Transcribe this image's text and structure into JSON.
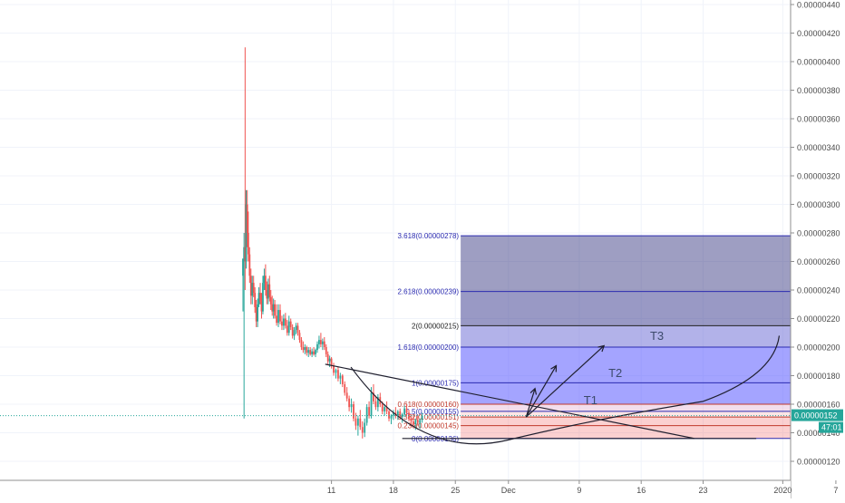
{
  "chart_data": {
    "type": "candlestick",
    "title": "",
    "xlabel": "",
    "ylabel": "",
    "grid": true,
    "price_axis": {
      "ylim": [
        1.08e-06,
        4.48e-06
      ],
      "ticks": [
        "0.00000440",
        "0.00000420",
        "0.00000400",
        "0.00000380",
        "0.00000360",
        "0.00000340",
        "0.00000320",
        "0.00000300",
        "0.00000280",
        "0.00000260",
        "0.00000240",
        "0.00000220",
        "0.00000200",
        "0.00000180",
        "0.00000160",
        "0.00000140",
        "0.00000120"
      ],
      "tick_values": [
        4.4e-06,
        4.2e-06,
        4e-06,
        3.8e-06,
        3.6e-06,
        3.4e-06,
        3.2e-06,
        3e-06,
        2.8e-06,
        2.6e-06,
        2.4e-06,
        2.2e-06,
        2e-06,
        1.8e-06,
        1.6e-06,
        1.4e-06,
        1.2e-06
      ]
    },
    "time_axis": {
      "ticks": [
        "11",
        "18",
        "25",
        "Dec",
        "9",
        "16",
        "23",
        "2020",
        "7"
      ],
      "tick_days": [
        10,
        17,
        24,
        30,
        38,
        45,
        52,
        61,
        67
      ]
    },
    "last_price": {
      "value": 1.52e-06,
      "label": "0.00000152",
      "countdown": "47:01"
    },
    "fibonacci_extension": {
      "x_range_days": [
        24.6,
        66.3
      ],
      "levels": [
        {
          "ratio": "0",
          "price": 1.36e-06,
          "label": "0(0.00000136)",
          "color": "#2b2bb0"
        },
        {
          "ratio": "0.236",
          "price": 1.45e-06,
          "label": "0.236(0.00000145)",
          "color": "#c0392b"
        },
        {
          "ratio": "0.382",
          "price": 1.51e-06,
          "label": "0.382(0.00000151)",
          "color": "#c0392b"
        },
        {
          "ratio": "0.5",
          "price": 1.55e-06,
          "label": "0.5(0.00000155)",
          "color": "#2b2bb0"
        },
        {
          "ratio": "0.618",
          "price": 1.6e-06,
          "label": "0.618(0.00000160)",
          "color": "#c0392b"
        },
        {
          "ratio": "1",
          "price": 1.75e-06,
          "label": "1(0.00000175)",
          "color": "#2b2bb0"
        },
        {
          "ratio": "1.618",
          "price": 2e-06,
          "label": "1.618(0.00000200)",
          "color": "#2b2bb0"
        },
        {
          "ratio": "2",
          "price": 2.15e-06,
          "label": "2(0.00000215)",
          "color": "#222222"
        },
        {
          "ratio": "2.618",
          "price": 2.39e-06,
          "label": "2.618(0.00000239)",
          "color": "#2b2bb0"
        },
        {
          "ratio": "3.618",
          "price": 2.78e-06,
          "label": "3.618(0.00000278)",
          "color": "#2b2bb0"
        }
      ]
    },
    "annotations": [
      {
        "text": "T1",
        "x_day": 38.5,
        "price": 1.6e-06
      },
      {
        "text": "T2",
        "x_day": 41.3,
        "price": 1.79e-06
      },
      {
        "text": "T3",
        "x_day": 46.0,
        "price": 2.05e-06
      }
    ],
    "candles": [
      {
        "d": 0.0,
        "o": 2.5e-06,
        "h": 2.62e-06,
        "l": 2.25e-06,
        "c": 2.62e-06
      },
      {
        "d": 0.12,
        "o": 2.62e-06,
        "h": 2.8e-06,
        "l": 1.5e-06,
        "c": 2.7e-06
      },
      {
        "d": 0.24,
        "o": 2.7e-06,
        "h": 4.1e-06,
        "l": 2.4e-06,
        "c": 2.6e-06
      },
      {
        "d": 0.36,
        "o": 2.6e-06,
        "h": 3.1e-06,
        "l": 2.55e-06,
        "c": 3e-06
      },
      {
        "d": 0.48,
        "o": 3e-06,
        "h": 3.1e-06,
        "l": 2.7e-06,
        "c": 2.8e-06
      },
      {
        "d": 0.6,
        "o": 2.8e-06,
        "h": 2.95e-06,
        "l": 2.6e-06,
        "c": 2.65e-06
      },
      {
        "d": 0.75,
        "o": 2.65e-06,
        "h": 2.7e-06,
        "l": 2.45e-06,
        "c": 2.5e-06
      },
      {
        "d": 0.9,
        "o": 2.5e-06,
        "h": 2.55e-06,
        "l": 2.3e-06,
        "c": 2.36e-06
      },
      {
        "d": 1.05,
        "o": 2.36e-06,
        "h": 2.5e-06,
        "l": 2.3e-06,
        "c": 2.45e-06
      },
      {
        "d": 1.2,
        "o": 2.45e-06,
        "h": 2.5e-06,
        "l": 2.35e-06,
        "c": 2.38e-06
      },
      {
        "d": 1.35,
        "o": 2.38e-06,
        "h": 2.42e-06,
        "l": 2.24e-06,
        "c": 2.28e-06
      },
      {
        "d": 1.5,
        "o": 2.28e-06,
        "h": 2.33e-06,
        "l": 2.14e-06,
        "c": 2.18e-06
      },
      {
        "d": 1.65,
        "o": 2.18e-06,
        "h": 2.34e-06,
        "l": 2.14e-06,
        "c": 2.3e-06
      },
      {
        "d": 1.8,
        "o": 2.3e-06,
        "h": 2.42e-06,
        "l": 2.28e-06,
        "c": 2.38e-06
      },
      {
        "d": 1.95,
        "o": 2.38e-06,
        "h": 2.45e-06,
        "l": 2.3e-06,
        "c": 2.32e-06
      },
      {
        "d": 2.1,
        "o": 2.32e-06,
        "h": 2.38e-06,
        "l": 2.2e-06,
        "c": 2.25e-06
      },
      {
        "d": 2.25,
        "o": 2.25e-06,
        "h": 2.5e-06,
        "l": 2.23e-06,
        "c": 2.45e-06
      },
      {
        "d": 2.4,
        "o": 2.45e-06,
        "h": 2.55e-06,
        "l": 2.4e-06,
        "c": 2.5e-06
      },
      {
        "d": 2.55,
        "o": 2.5e-06,
        "h": 2.58e-06,
        "l": 2.36e-06,
        "c": 2.4e-06
      },
      {
        "d": 2.7,
        "o": 2.4e-06,
        "h": 2.46e-06,
        "l": 2.3e-06,
        "c": 2.34e-06
      },
      {
        "d": 2.85,
        "o": 2.34e-06,
        "h": 2.48e-06,
        "l": 2.3e-06,
        "c": 2.44e-06
      },
      {
        "d": 3.0,
        "o": 2.44e-06,
        "h": 2.5e-06,
        "l": 2.32e-06,
        "c": 2.35e-06
      },
      {
        "d": 3.15,
        "o": 2.35e-06,
        "h": 2.4e-06,
        "l": 2.26e-06,
        "c": 2.3e-06
      },
      {
        "d": 3.3,
        "o": 2.3e-06,
        "h": 2.36e-06,
        "l": 2.22e-06,
        "c": 2.25e-06
      },
      {
        "d": 3.45,
        "o": 2.25e-06,
        "h": 2.34e-06,
        "l": 2.2e-06,
        "c": 2.3e-06
      },
      {
        "d": 3.6,
        "o": 2.3e-06,
        "h": 2.33e-06,
        "l": 2.2e-06,
        "c": 2.22e-06
      },
      {
        "d": 3.8,
        "o": 2.22e-06,
        "h": 2.3e-06,
        "l": 2.15e-06,
        "c": 2.17e-06
      },
      {
        "d": 4.0,
        "o": 2.17e-06,
        "h": 2.3e-06,
        "l": 2.14e-06,
        "c": 2.26e-06
      },
      {
        "d": 4.2,
        "o": 2.26e-06,
        "h": 2.3e-06,
        "l": 2.16e-06,
        "c": 2.18e-06
      },
      {
        "d": 4.4,
        "o": 2.18e-06,
        "h": 2.22e-06,
        "l": 2.12e-06,
        "c": 2.15e-06
      },
      {
        "d": 4.6,
        "o": 2.15e-06,
        "h": 2.23e-06,
        "l": 2.12e-06,
        "c": 2.2e-06
      },
      {
        "d": 4.8,
        "o": 2.2e-06,
        "h": 2.24e-06,
        "l": 2.13e-06,
        "c": 2.15e-06
      },
      {
        "d": 5.0,
        "o": 2.15e-06,
        "h": 2.19e-06,
        "l": 2.08e-06,
        "c": 2.1e-06
      },
      {
        "d": 5.2,
        "o": 2.1e-06,
        "h": 2.22e-06,
        "l": 2.08e-06,
        "c": 2.18e-06
      },
      {
        "d": 5.4,
        "o": 2.18e-06,
        "h": 2.2e-06,
        "l": 2.12e-06,
        "c": 2.14e-06
      },
      {
        "d": 5.6,
        "o": 2.14e-06,
        "h": 2.16e-06,
        "l": 2.06e-06,
        "c": 2.08e-06
      },
      {
        "d": 5.8,
        "o": 2.08e-06,
        "h": 2.14e-06,
        "l": 2.05e-06,
        "c": 2.12e-06
      },
      {
        "d": 6.0,
        "o": 2.12e-06,
        "h": 2.17e-06,
        "l": 2.09e-06,
        "c": 2.15e-06
      },
      {
        "d": 6.2,
        "o": 2.15e-06,
        "h": 2.17e-06,
        "l": 2.08e-06,
        "c": 2.1e-06
      },
      {
        "d": 6.4,
        "o": 2.1e-06,
        "h": 2.12e-06,
        "l": 2.03e-06,
        "c": 2.05e-06
      },
      {
        "d": 6.6,
        "o": 2.05e-06,
        "h": 2.07e-06,
        "l": 1.98e-06,
        "c": 2e-06
      },
      {
        "d": 6.8,
        "o": 2e-06,
        "h": 2.04e-06,
        "l": 1.96e-06,
        "c": 1.98e-06
      },
      {
        "d": 7.0,
        "o": 1.98e-06,
        "h": 2.02e-06,
        "l": 1.95e-06,
        "c": 2e-06
      },
      {
        "d": 7.2,
        "o": 2e-06,
        "h": 2.01e-06,
        "l": 1.94e-06,
        "c": 1.96e-06
      },
      {
        "d": 7.4,
        "o": 1.96e-06,
        "h": 2e-06,
        "l": 1.93e-06,
        "c": 1.98e-06
      },
      {
        "d": 7.6,
        "o": 1.98e-06,
        "h": 2e-06,
        "l": 1.94e-06,
        "c": 1.95e-06
      },
      {
        "d": 7.8,
        "o": 1.95e-06,
        "h": 1.99e-06,
        "l": 1.93e-06,
        "c": 1.97e-06
      },
      {
        "d": 8.0,
        "o": 1.97e-06,
        "h": 2e-06,
        "l": 1.94e-06,
        "c": 1.95e-06
      },
      {
        "d": 8.2,
        "o": 1.95e-06,
        "h": 1.99e-06,
        "l": 1.93e-06,
        "c": 1.98e-06
      },
      {
        "d": 8.4,
        "o": 1.98e-06,
        "h": 2.04e-06,
        "l": 1.96e-06,
        "c": 2.02e-06
      },
      {
        "d": 8.6,
        "o": 2.02e-06,
        "h": 2.08e-06,
        "l": 1.99e-06,
        "c": 2.05e-06
      },
      {
        "d": 8.8,
        "o": 2.05e-06,
        "h": 2.1e-06,
        "l": 2e-06,
        "c": 2.02e-06
      },
      {
        "d": 9.0,
        "o": 2.02e-06,
        "h": 2.06e-06,
        "l": 1.98e-06,
        "c": 2.04e-06
      },
      {
        "d": 9.2,
        "o": 2.04e-06,
        "h": 2.07e-06,
        "l": 1.98e-06,
        "c": 2e-06
      },
      {
        "d": 9.4,
        "o": 2e-06,
        "h": 2.02e-06,
        "l": 1.93e-06,
        "c": 1.95e-06
      },
      {
        "d": 9.6,
        "o": 1.95e-06,
        "h": 1.97e-06,
        "l": 1.88e-06,
        "c": 1.9e-06
      },
      {
        "d": 9.8,
        "o": 1.9e-06,
        "h": 1.94e-06,
        "l": 1.86e-06,
        "c": 1.92e-06
      },
      {
        "d": 10.0,
        "o": 1.92e-06,
        "h": 1.93e-06,
        "l": 1.85e-06,
        "c": 1.87e-06
      },
      {
        "d": 10.25,
        "o": 1.87e-06,
        "h": 1.89e-06,
        "l": 1.8e-06,
        "c": 1.82e-06
      },
      {
        "d": 10.5,
        "o": 1.82e-06,
        "h": 1.85e-06,
        "l": 1.78e-06,
        "c": 1.84e-06
      },
      {
        "d": 10.75,
        "o": 1.84e-06,
        "h": 1.86e-06,
        "l": 1.76e-06,
        "c": 1.78e-06
      },
      {
        "d": 11.0,
        "o": 1.78e-06,
        "h": 1.82e-06,
        "l": 1.74e-06,
        "c": 1.8e-06
      },
      {
        "d": 11.25,
        "o": 1.8e-06,
        "h": 1.81e-06,
        "l": 1.72e-06,
        "c": 1.74e-06
      },
      {
        "d": 11.5,
        "o": 1.74e-06,
        "h": 1.76e-06,
        "l": 1.66e-06,
        "c": 1.68e-06
      },
      {
        "d": 11.75,
        "o": 1.68e-06,
        "h": 1.72e-06,
        "l": 1.62e-06,
        "c": 1.64e-06
      },
      {
        "d": 12.0,
        "o": 1.64e-06,
        "h": 1.66e-06,
        "l": 1.55e-06,
        "c": 1.58e-06
      },
      {
        "d": 12.25,
        "o": 1.58e-06,
        "h": 1.64e-06,
        "l": 1.54e-06,
        "c": 1.6e-06
      },
      {
        "d": 12.5,
        "o": 1.6e-06,
        "h": 1.62e-06,
        "l": 1.48e-06,
        "c": 1.5e-06
      },
      {
        "d": 12.75,
        "o": 1.5e-06,
        "h": 1.54e-06,
        "l": 1.42e-06,
        "c": 1.45e-06
      },
      {
        "d": 13.0,
        "o": 1.45e-06,
        "h": 1.52e-06,
        "l": 1.38e-06,
        "c": 1.5e-06
      },
      {
        "d": 13.25,
        "o": 1.5e-06,
        "h": 1.56e-06,
        "l": 1.42e-06,
        "c": 1.44e-06
      },
      {
        "d": 13.5,
        "o": 1.44e-06,
        "h": 1.48e-06,
        "l": 1.36e-06,
        "c": 1.4e-06
      },
      {
        "d": 13.75,
        "o": 1.4e-06,
        "h": 1.5e-06,
        "l": 1.37e-06,
        "c": 1.47e-06
      },
      {
        "d": 14.0,
        "o": 1.47e-06,
        "h": 1.6e-06,
        "l": 1.45e-06,
        "c": 1.58e-06
      },
      {
        "d": 14.25,
        "o": 1.58e-06,
        "h": 1.62e-06,
        "l": 1.5e-06,
        "c": 1.52e-06
      },
      {
        "d": 14.5,
        "o": 1.52e-06,
        "h": 1.72e-06,
        "l": 1.5e-06,
        "c": 1.68e-06
      },
      {
        "d": 14.75,
        "o": 1.68e-06,
        "h": 1.74e-06,
        "l": 1.6e-06,
        "c": 1.62e-06
      },
      {
        "d": 15.0,
        "o": 1.62e-06,
        "h": 1.66e-06,
        "l": 1.56e-06,
        "c": 1.58e-06
      },
      {
        "d": 15.25,
        "o": 1.58e-06,
        "h": 1.67e-06,
        "l": 1.55e-06,
        "c": 1.65e-06
      },
      {
        "d": 15.5,
        "o": 1.65e-06,
        "h": 1.68e-06,
        "l": 1.58e-06,
        "c": 1.6e-06
      },
      {
        "d": 15.75,
        "o": 1.6e-06,
        "h": 1.62e-06,
        "l": 1.53e-06,
        "c": 1.55e-06
      },
      {
        "d": 16.0,
        "o": 1.55e-06,
        "h": 1.6e-06,
        "l": 1.52e-06,
        "c": 1.58e-06
      },
      {
        "d": 16.25,
        "o": 1.58e-06,
        "h": 1.62e-06,
        "l": 1.53e-06,
        "c": 1.55e-06
      },
      {
        "d": 16.5,
        "o": 1.55e-06,
        "h": 1.56e-06,
        "l": 1.48e-06,
        "c": 1.5e-06
      },
      {
        "d": 16.75,
        "o": 1.5e-06,
        "h": 1.53e-06,
        "l": 1.46e-06,
        "c": 1.52e-06
      },
      {
        "d": 17.0,
        "o": 1.52e-06,
        "h": 1.56e-06,
        "l": 1.49e-06,
        "c": 1.54e-06
      },
      {
        "d": 17.25,
        "o": 1.54e-06,
        "h": 1.58e-06,
        "l": 1.5e-06,
        "c": 1.52e-06
      },
      {
        "d": 17.5,
        "o": 1.52e-06,
        "h": 1.56e-06,
        "l": 1.49e-06,
        "c": 1.55e-06
      },
      {
        "d": 17.75,
        "o": 1.55e-06,
        "h": 1.57e-06,
        "l": 1.5e-06,
        "c": 1.51e-06
      },
      {
        "d": 18.0,
        "o": 1.51e-06,
        "h": 1.54e-06,
        "l": 1.47e-06,
        "c": 1.53e-06
      },
      {
        "d": 18.25,
        "o": 1.53e-06,
        "h": 1.59e-06,
        "l": 1.51e-06,
        "c": 1.57e-06
      },
      {
        "d": 18.5,
        "o": 1.57e-06,
        "h": 1.6e-06,
        "l": 1.52e-06,
        "c": 1.54e-06
      },
      {
        "d": 18.75,
        "o": 1.54e-06,
        "h": 1.56e-06,
        "l": 1.48e-06,
        "c": 1.5e-06
      },
      {
        "d": 19.0,
        "o": 1.5e-06,
        "h": 1.53e-06,
        "l": 1.45e-06,
        "c": 1.48e-06
      },
      {
        "d": 19.25,
        "o": 1.48e-06,
        "h": 1.52e-06,
        "l": 1.44e-06,
        "c": 1.46e-06
      },
      {
        "d": 19.5,
        "o": 1.46e-06,
        "h": 1.5e-06,
        "l": 1.42e-06,
        "c": 1.49e-06
      },
      {
        "d": 19.75,
        "o": 1.49e-06,
        "h": 1.52e-06,
        "l": 1.45e-06,
        "c": 1.47e-06
      },
      {
        "d": 20.0,
        "o": 1.47e-06,
        "h": 1.5e-06,
        "l": 1.43e-06,
        "c": 1.49e-06
      },
      {
        "d": 20.25,
        "o": 1.49e-06,
        "h": 1.54e-06,
        "l": 1.47e-06,
        "c": 1.52e-06
      }
    ]
  }
}
